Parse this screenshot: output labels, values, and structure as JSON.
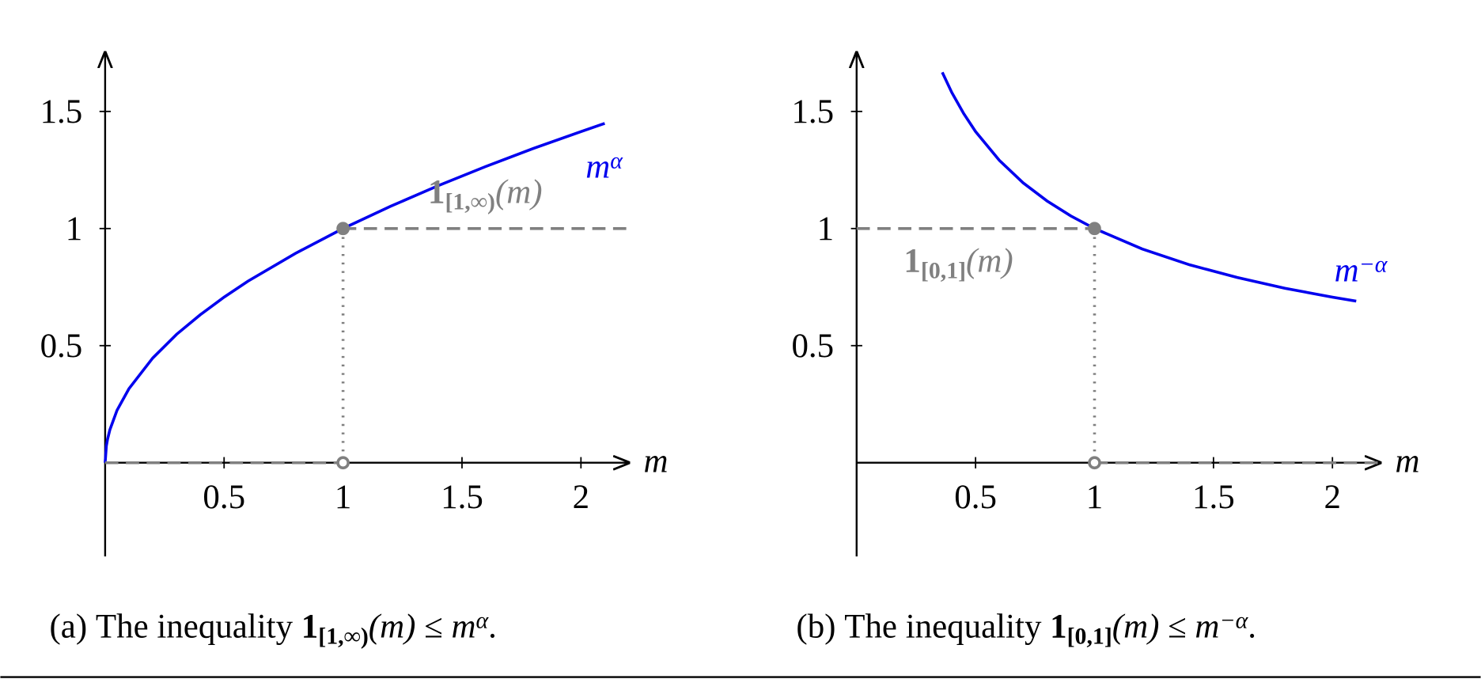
{
  "chart_data": [
    {
      "type": "line",
      "xlabel": "m",
      "xlim": [
        0,
        2.2
      ],
      "ylim": [
        -0.4,
        1.75
      ],
      "xticks": [
        0.5,
        1,
        1.5,
        2
      ],
      "yticks": [
        0.5,
        1,
        1.5
      ],
      "series": [
        {
          "color": "#0000ee",
          "style": "solid",
          "x": [
            0,
            0.005,
            0.01,
            0.02,
            0.05,
            0.1,
            0.2,
            0.3,
            0.4,
            0.5,
            0.6,
            0.8,
            1,
            1.2,
            1.4,
            1.6,
            1.8,
            2,
            2.1
          ],
          "values": [
            0,
            0.071,
            0.1,
            0.141,
            0.224,
            0.316,
            0.447,
            0.548,
            0.632,
            0.707,
            0.775,
            0.894,
            1,
            1.095,
            1.183,
            1.265,
            1.342,
            1.414,
            1.449
          ]
        },
        {
          "color": "#808080",
          "style": "dashed",
          "x": [
            0,
            1,
            1,
            1,
            2.2
          ],
          "values": [
            0,
            0,
            null,
            1,
            1
          ]
        }
      ],
      "markers": [
        {
          "x": 1,
          "y": 1,
          "filled": true
        },
        {
          "x": 1,
          "y": 0,
          "filled": false
        }
      ],
      "curve_label": {
        "base": "m",
        "sup": "α"
      },
      "indicator_label": {
        "bold": "1",
        "sub": "[1,∞)",
        "arg": "(m)"
      },
      "caption": {
        "tag": "(a)",
        "text": "The inequality",
        "bold": "1",
        "sub": "[1,∞)",
        "arg": "(m)",
        "rel": "≤",
        "base": "m",
        "sup": "α",
        "end": "."
      }
    },
    {
      "type": "line",
      "xlabel": "m",
      "xlim": [
        0,
        2.2
      ],
      "ylim": [
        -0.4,
        1.75
      ],
      "xticks": [
        0.5,
        1,
        1.5,
        2
      ],
      "yticks": [
        0.5,
        1,
        1.5
      ],
      "series": [
        {
          "color": "#0000ee",
          "style": "solid",
          "x": [
            0.36,
            0.4,
            0.45,
            0.5,
            0.6,
            0.7,
            0.8,
            0.9,
            1,
            1.2,
            1.4,
            1.6,
            1.8,
            2,
            2.1
          ],
          "values": [
            1.667,
            1.581,
            1.491,
            1.414,
            1.291,
            1.195,
            1.118,
            1.054,
            1,
            0.913,
            0.845,
            0.791,
            0.745,
            0.707,
            0.69
          ]
        },
        {
          "color": "#808080",
          "style": "dashed",
          "x": [
            0,
            1,
            1,
            1,
            2.2
          ],
          "values": [
            1,
            1,
            null,
            0,
            0
          ]
        }
      ],
      "markers": [
        {
          "x": 1,
          "y": 1,
          "filled": true
        },
        {
          "x": 1,
          "y": 0,
          "filled": false
        }
      ],
      "curve_label": {
        "base": "m",
        "sup": "−α"
      },
      "indicator_label": {
        "bold": "1",
        "sub": "[0,1]",
        "arg": "(m)"
      },
      "caption": {
        "tag": "(b)",
        "text": "The inequality",
        "bold": "1",
        "sub": "[0,1]",
        "arg": "(m)",
        "rel": "≤",
        "base": "m",
        "sup": "−α",
        "end": "."
      }
    }
  ]
}
